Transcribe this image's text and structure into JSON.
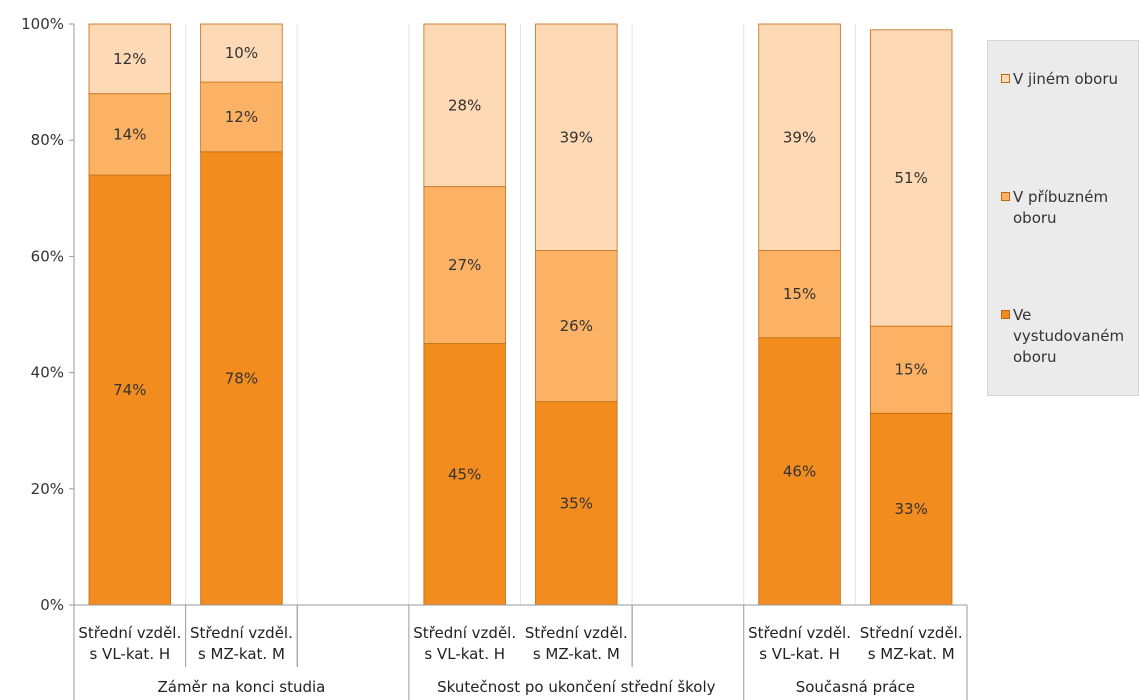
{
  "chart_data": {
    "type": "bar",
    "stacked": true,
    "title": "",
    "xlabel": "",
    "ylabel": "",
    "ylim": [
      0,
      100
    ],
    "y_ticks": [
      "0%",
      "20%",
      "40%",
      "60%",
      "80%",
      "100%"
    ],
    "groups": [
      {
        "label": "Záměr na konci studia",
        "categories": [
          "Střední vzděl. s VL-kat. H",
          "Střední vzděl. s MZ-kat. M"
        ]
      },
      {
        "label": "Skutečnost po ukončení střední školy",
        "categories": [
          "Střední vzděl. s VL-kat. H",
          "Střední vzděl. s MZ-kat. M"
        ]
      },
      {
        "label": "Současná práce",
        "categories": [
          "Střední vzděl. s VL-kat. H",
          "Střední vzděl. s MZ-kat. M"
        ]
      }
    ],
    "category_lines": [
      [
        "Střední vzděl.",
        "s VL-kat. H"
      ],
      [
        "Střední vzděl.",
        "s MZ-kat. M"
      ],
      [
        "Střední vzděl.",
        "s VL-kat. H"
      ],
      [
        "Střední vzděl.",
        "s MZ-kat. M"
      ],
      [
        "Střední vzděl.",
        "s VL-kat. H"
      ],
      [
        "Střední vzděl.",
        "s MZ-kat. M"
      ]
    ],
    "series": [
      {
        "name": "Ve vystudovaném oboru",
        "color": "#f28c1e",
        "values": [
          74,
          78,
          45,
          35,
          46,
          33
        ],
        "labels": [
          "74%",
          "78%",
          "45%",
          "35%",
          "46%",
          "33%"
        ]
      },
      {
        "name": "V příbuzném oboru",
        "color": "#fbb265",
        "values": [
          14,
          12,
          27,
          26,
          15,
          15
        ],
        "labels": [
          "14%",
          "12%",
          "27%",
          "26%",
          "15%",
          "15%"
        ]
      },
      {
        "name": "V jiném oboru",
        "color": "#fdd9b5",
        "values": [
          12,
          10,
          28,
          39,
          39,
          51
        ],
        "labels": [
          "12%",
          "10%",
          "28%",
          "39%",
          "39%",
          "51%"
        ]
      }
    ],
    "legend": {
      "position": "right",
      "items": [
        {
          "lines": [
            "V jiném oboru"
          ],
          "color": "#fdd9b5"
        },
        {
          "lines": [
            "V příbuzném",
            "oboru"
          ],
          "color": "#fbb265"
        },
        {
          "lines": [
            "Ve",
            "vystudovaném",
            "oboru"
          ],
          "color": "#f28c1e"
        }
      ]
    },
    "grid": true,
    "border_color": "#c06a10"
  }
}
